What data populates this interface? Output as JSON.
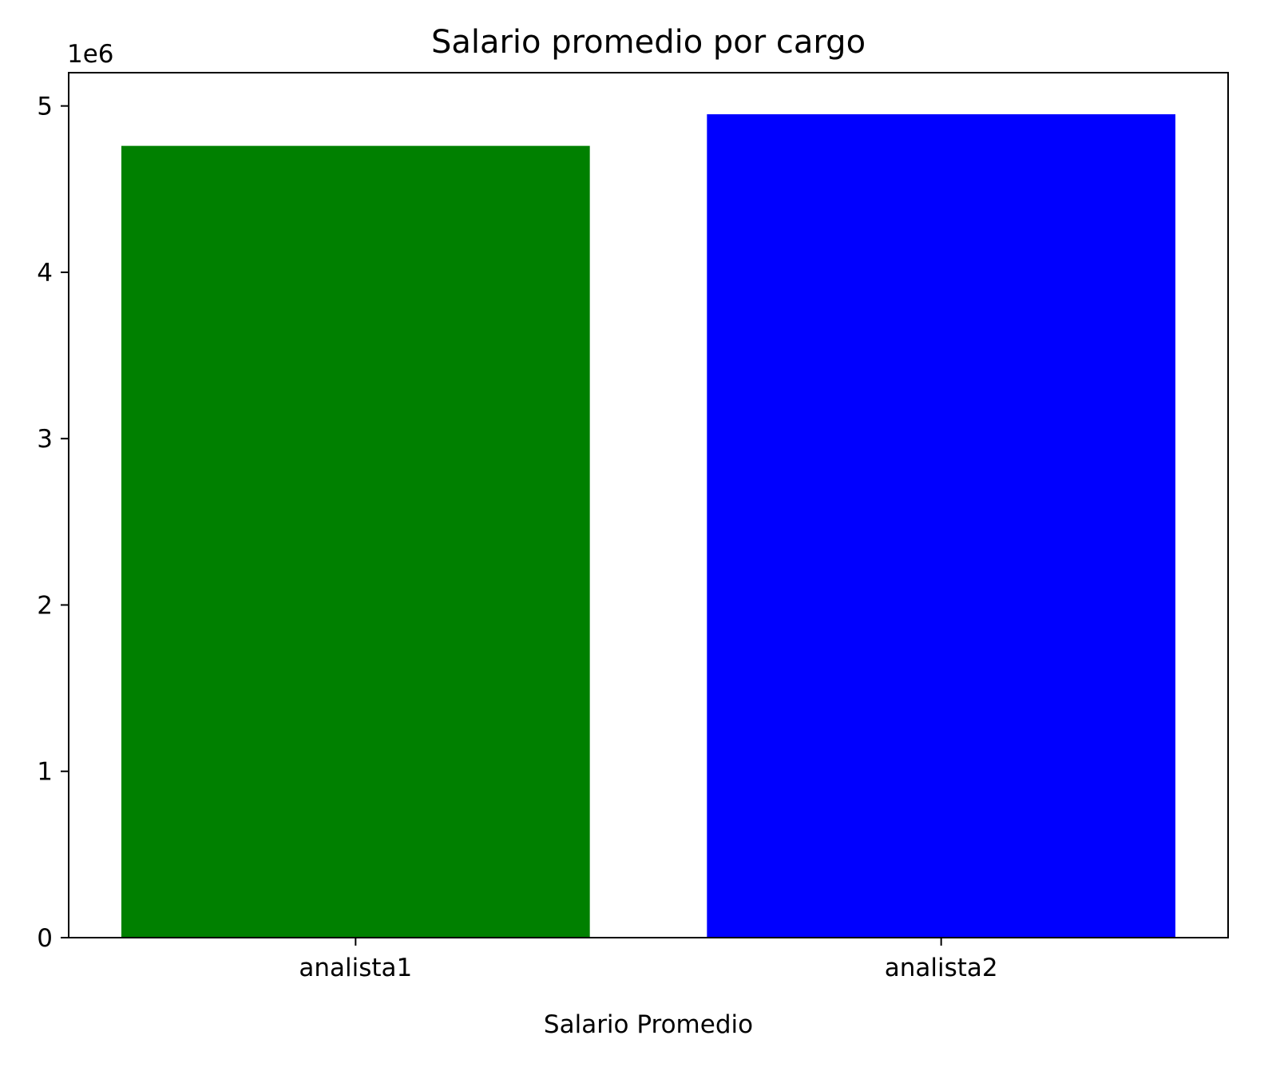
{
  "chart_data": {
    "type": "bar",
    "title": "Salario promedio por cargo",
    "xlabel": "Salario Promedio",
    "ylabel": "",
    "offset_label": "1e6",
    "categories": [
      "analista1",
      "analista2"
    ],
    "values": [
      4760000,
      4950000
    ],
    "colors": [
      "#008000",
      "#0000ff"
    ],
    "ylim": [
      0,
      5200000
    ],
    "yticks": [
      0,
      1000000,
      2000000,
      3000000,
      4000000,
      5000000
    ],
    "ytick_labels": [
      "0",
      "1",
      "2",
      "3",
      "4",
      "5"
    ],
    "grid": false,
    "legend": "none"
  }
}
